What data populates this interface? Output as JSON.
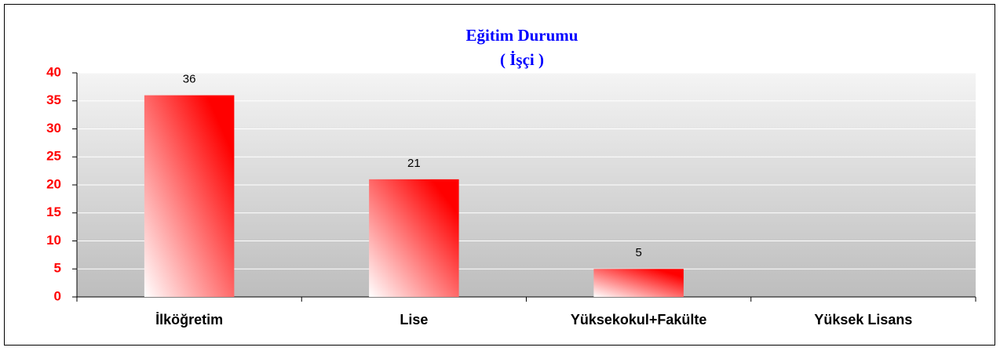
{
  "chart_data": {
    "type": "bar",
    "title": "Eğitim Durumu",
    "subtitle": "( İşçi )",
    "categories": [
      "İlköğretim",
      "Lise",
      "Yüksekokul+Fakülte",
      "Yüksek Lisans"
    ],
    "values": [
      36,
      21,
      5,
      null
    ],
    "color": "#ff0000",
    "ylim": [
      0,
      40
    ],
    "yticks": [
      0,
      5,
      10,
      15,
      20,
      25,
      30,
      35,
      40
    ],
    "grid": true
  }
}
